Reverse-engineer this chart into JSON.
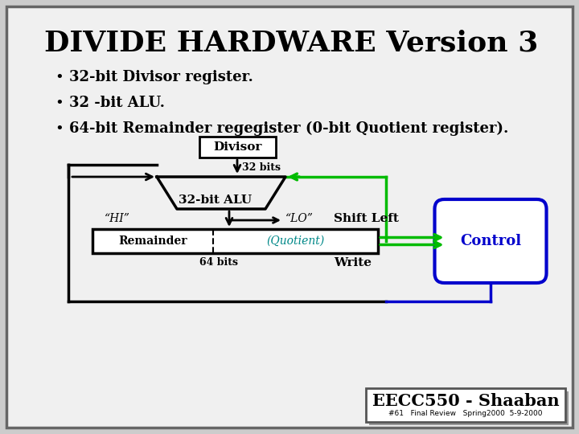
{
  "title": "DIVIDE HARDWARE Version 3",
  "bullets": [
    "32-bit Divisor register.",
    "32 -bit ALU.",
    "64-bit Remainder regegister (0-bit Quotient register)."
  ],
  "bg_color": "#cccccc",
  "inner_bg": "#f0f0f0",
  "title_color": "#000000",
  "bullet_color": "#000000",
  "diagram_black": "#000000",
  "diagram_green": "#00bb00",
  "diagram_blue": "#0000cc",
  "diagram_cyan": "#008888",
  "footer_text": "EECC550 - Shaaban",
  "footer_sub": "#61   Final Review   Spring2000  5-9-2000"
}
